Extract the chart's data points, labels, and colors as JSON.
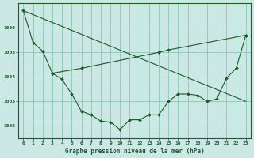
{
  "line1_x": [
    0,
    1,
    2,
    3,
    4,
    5,
    6,
    7,
    8,
    9,
    10,
    11,
    12,
    13,
    14,
    15,
    16,
    17,
    18,
    19,
    20,
    21,
    22,
    23
  ],
  "line1_y": [
    1006.7,
    1005.4,
    1005.05,
    1004.15,
    1003.9,
    1003.3,
    1002.6,
    1002.45,
    1002.2,
    1002.15,
    1001.85,
    1002.25,
    1002.25,
    1002.45,
    1002.45,
    1003.0,
    1003.3,
    1003.3,
    1003.25,
    1003.0,
    1003.1,
    1003.95,
    1004.35,
    1005.7
  ],
  "line2_x": [
    0,
    23
  ],
  "line2_y": [
    1006.7,
    1003.0
  ],
  "line3_x": [
    3,
    6,
    14,
    15,
    23
  ],
  "line3_y": [
    1004.15,
    1004.35,
    1005.0,
    1005.1,
    1005.7
  ],
  "background_color": "#cce8e4",
  "grid_color": "#7bbfb0",
  "line_color": "#1a5c2a",
  "title": "Graphe pression niveau de la mer (hPa)",
  "xlim": [
    -0.5,
    23.5
  ],
  "ylim": [
    1001.5,
    1007.0
  ],
  "yticks": [
    1002,
    1003,
    1004,
    1005,
    1006
  ],
  "xticks": [
    0,
    1,
    2,
    3,
    4,
    5,
    6,
    7,
    8,
    9,
    10,
    11,
    12,
    13,
    14,
    15,
    16,
    17,
    18,
    19,
    20,
    21,
    22,
    23
  ]
}
